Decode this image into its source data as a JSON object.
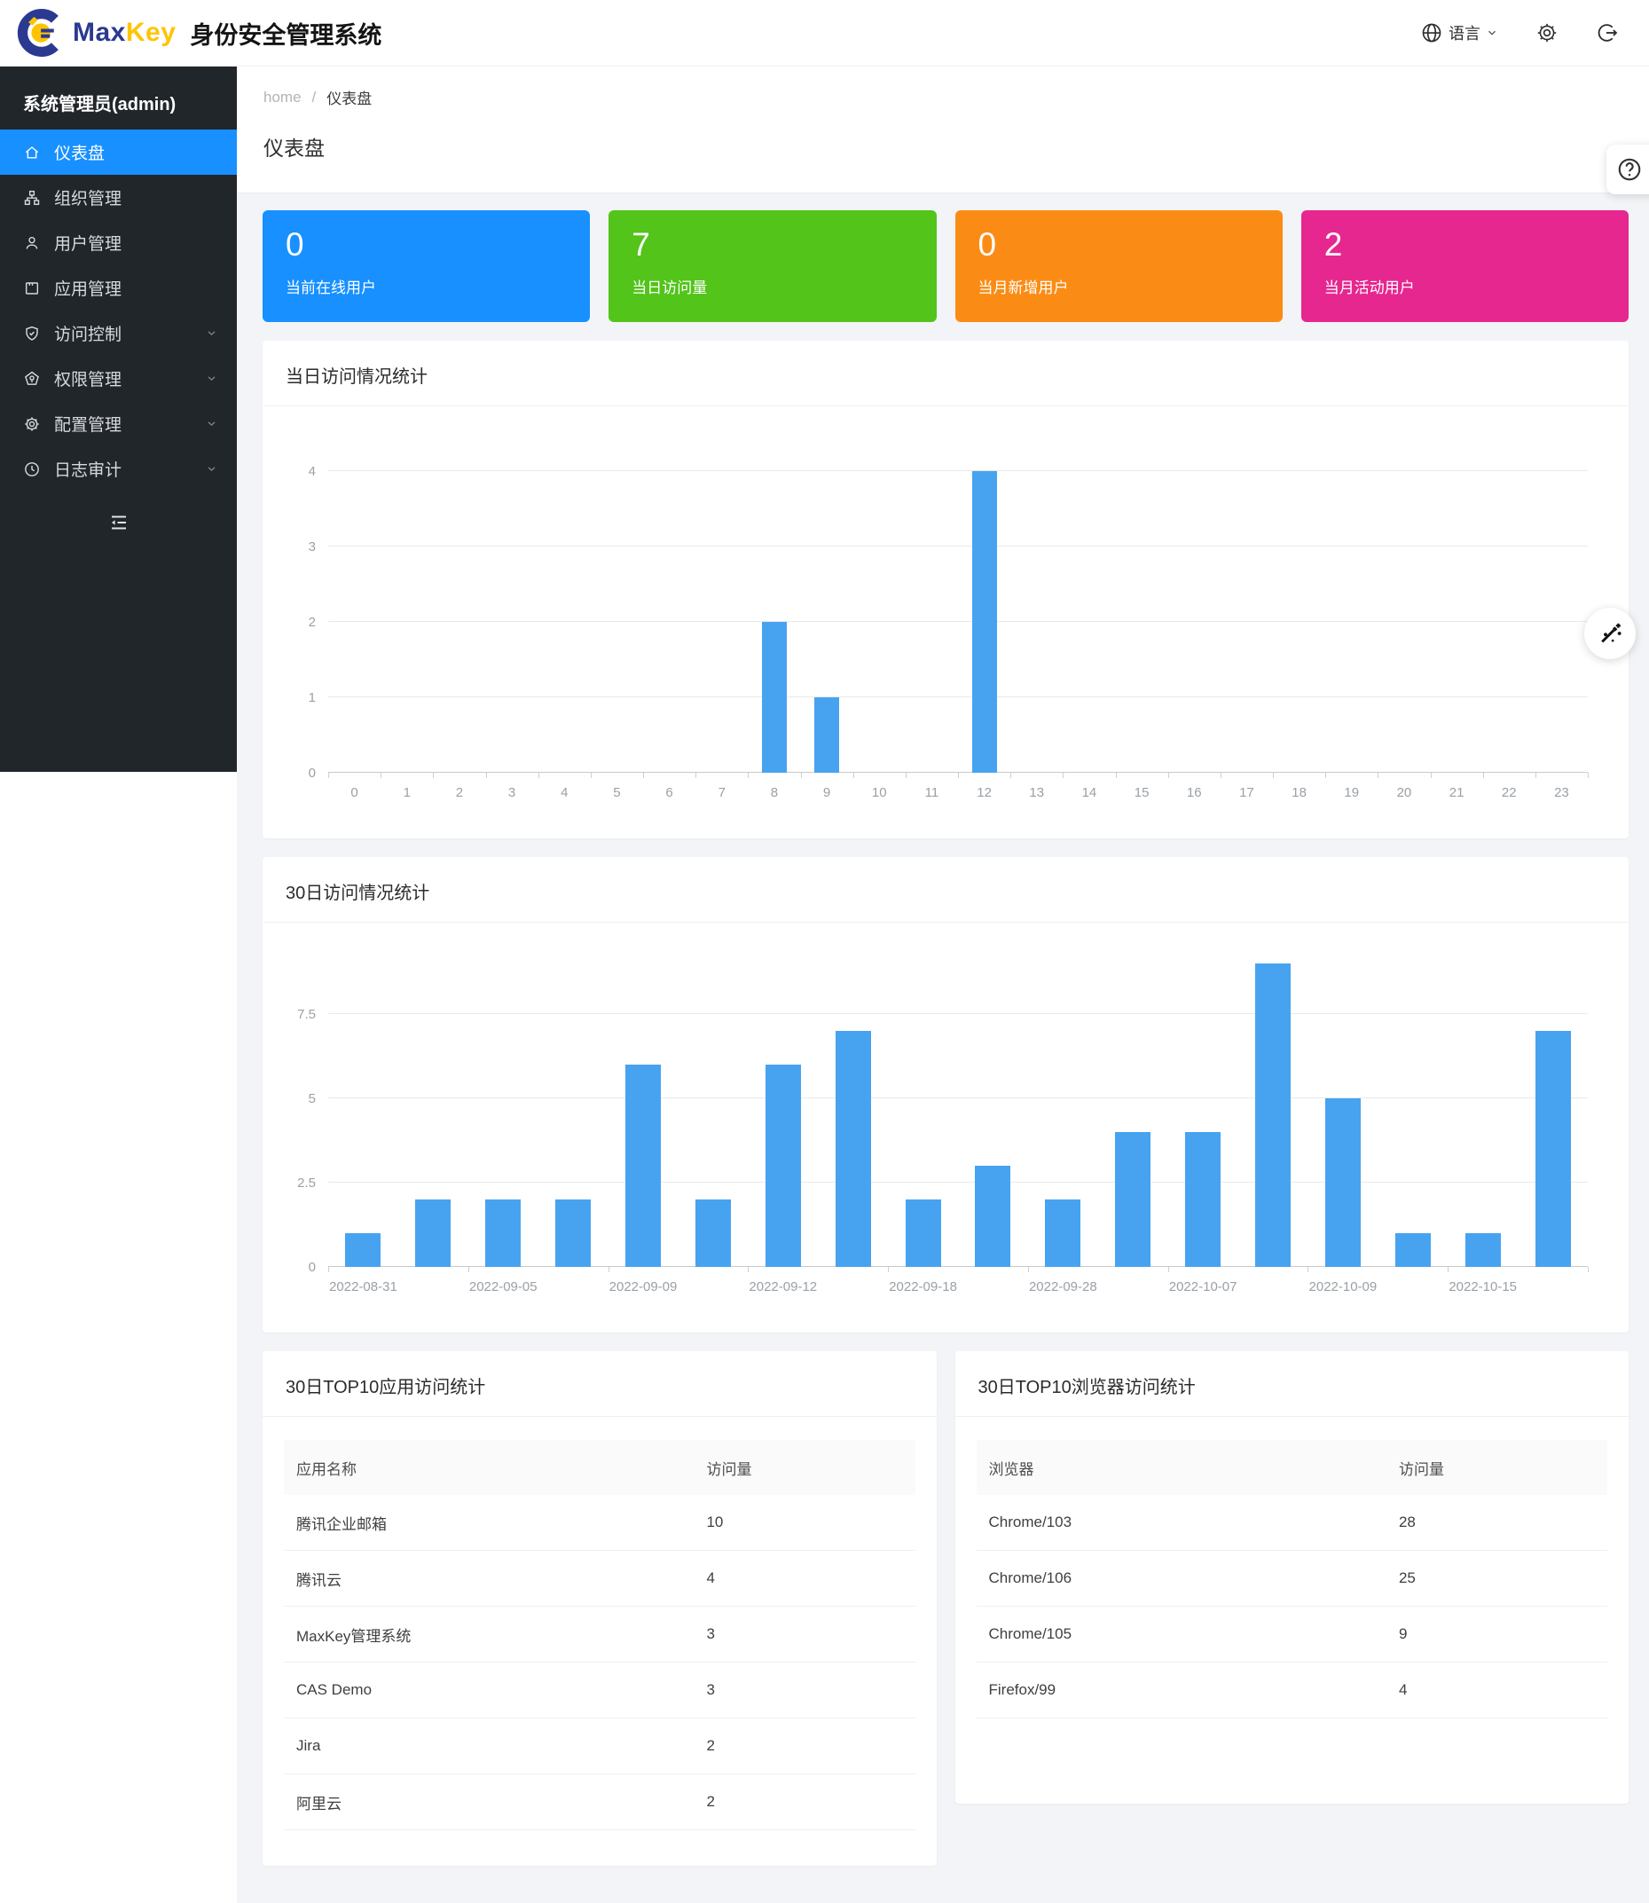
{
  "header": {
    "brand_max": "Max",
    "brand_key": "Key",
    "product_title": "身份安全管理系统",
    "language_label": "语言",
    "colors": {
      "brand_navy": "#2b3a90",
      "brand_yellow": "#ffc400"
    }
  },
  "sidebar": {
    "user": "系统管理员(admin)",
    "items": [
      {
        "key": "dashboard",
        "label": "仪表盘",
        "icon": "home",
        "active": true,
        "chevron": false
      },
      {
        "key": "organizations",
        "label": "组织管理",
        "icon": "org",
        "active": false,
        "chevron": false
      },
      {
        "key": "users",
        "label": "用户管理",
        "icon": "user",
        "active": false,
        "chevron": false
      },
      {
        "key": "applications",
        "label": "应用管理",
        "icon": "app",
        "active": false,
        "chevron": false
      },
      {
        "key": "access-control",
        "label": "访问控制",
        "icon": "shield",
        "active": false,
        "chevron": true
      },
      {
        "key": "permissions",
        "label": "权限管理",
        "icon": "badge",
        "active": false,
        "chevron": true
      },
      {
        "key": "configuration",
        "label": "配置管理",
        "icon": "gear",
        "active": false,
        "chevron": true
      },
      {
        "key": "audit-log",
        "label": "日志审计",
        "icon": "clock",
        "active": false,
        "chevron": true
      }
    ]
  },
  "breadcrumb": {
    "home": "home",
    "separator": "/",
    "current": "仪表盘"
  },
  "page_title": "仪表盘",
  "stat_cards": [
    {
      "value": "0",
      "label": "当前在线用户",
      "color": "#1890ff"
    },
    {
      "value": "7",
      "label": "当日访问量",
      "color": "#52c41a"
    },
    {
      "value": "0",
      "label": "当月新增用户",
      "color": "#fa8c16"
    },
    {
      "value": "2",
      "label": "当月活动用户",
      "color": "#e6278f"
    }
  ],
  "chart_data": [
    {
      "type": "bar",
      "title": "当日访问情况统计",
      "categories": [
        "0",
        "1",
        "2",
        "3",
        "4",
        "5",
        "6",
        "7",
        "8",
        "9",
        "10",
        "11",
        "12",
        "13",
        "14",
        "15",
        "16",
        "17",
        "18",
        "19",
        "20",
        "21",
        "22",
        "23"
      ],
      "values": [
        0,
        0,
        0,
        0,
        0,
        0,
        0,
        0,
        2,
        1,
        0,
        0,
        4,
        0,
        0,
        0,
        0,
        0,
        0,
        0,
        0,
        0,
        0,
        0
      ],
      "xlabel": "",
      "ylabel": "",
      "ylim": [
        0,
        4
      ],
      "yticks": [
        0,
        1,
        2,
        3,
        4
      ],
      "grid": true,
      "legend": "none",
      "bar_color": "#47a3f0"
    },
    {
      "type": "bar",
      "title": "30日访问情况统计",
      "categories": [
        "2022-08-31",
        "",
        "2022-09-05",
        "",
        "2022-09-09",
        "",
        "2022-09-12",
        "",
        "2022-09-18",
        "",
        "2022-09-28",
        "",
        "2022-10-07",
        "",
        "2022-10-09",
        "",
        "2022-10-15",
        ""
      ],
      "values": [
        1,
        2,
        2,
        2,
        6,
        2,
        6,
        7,
        2,
        3,
        2,
        4,
        4,
        9,
        5,
        1,
        1,
        7
      ],
      "xlabel": "",
      "ylabel": "",
      "ylim": [
        0,
        9
      ],
      "yticks": [
        0,
        2.5,
        5,
        7.5
      ],
      "grid": true,
      "legend": "none",
      "bar_color": "#47a3f0"
    }
  ],
  "tables": [
    {
      "key": "top10-apps",
      "title": "30日TOP10应用访问统计",
      "columns": [
        "应用名称",
        "访问量"
      ],
      "rows": [
        [
          "腾讯企业邮箱",
          "10"
        ],
        [
          "腾讯云",
          "4"
        ],
        [
          "MaxKey管理系统",
          "3"
        ],
        [
          "CAS Demo",
          "3"
        ],
        [
          "Jira",
          "2"
        ],
        [
          "阿里云",
          "2"
        ]
      ]
    },
    {
      "key": "top10-browsers",
      "title": "30日TOP10浏览器访问统计",
      "columns": [
        "浏览器",
        "访问量"
      ],
      "rows": [
        [
          "Chrome/103",
          "28"
        ],
        [
          "Chrome/106",
          "25"
        ],
        [
          "Chrome/105",
          "9"
        ],
        [
          "Firefox/99",
          "4"
        ]
      ]
    }
  ],
  "floating": {
    "help_icon": "question-circle",
    "wand_icon": "magic-wand"
  },
  "colors": {
    "accent": "#1890ff",
    "sidebar_bg": "#21262b",
    "content_bg": "#f3f4f7",
    "chart_bar": "#47a3f0"
  }
}
